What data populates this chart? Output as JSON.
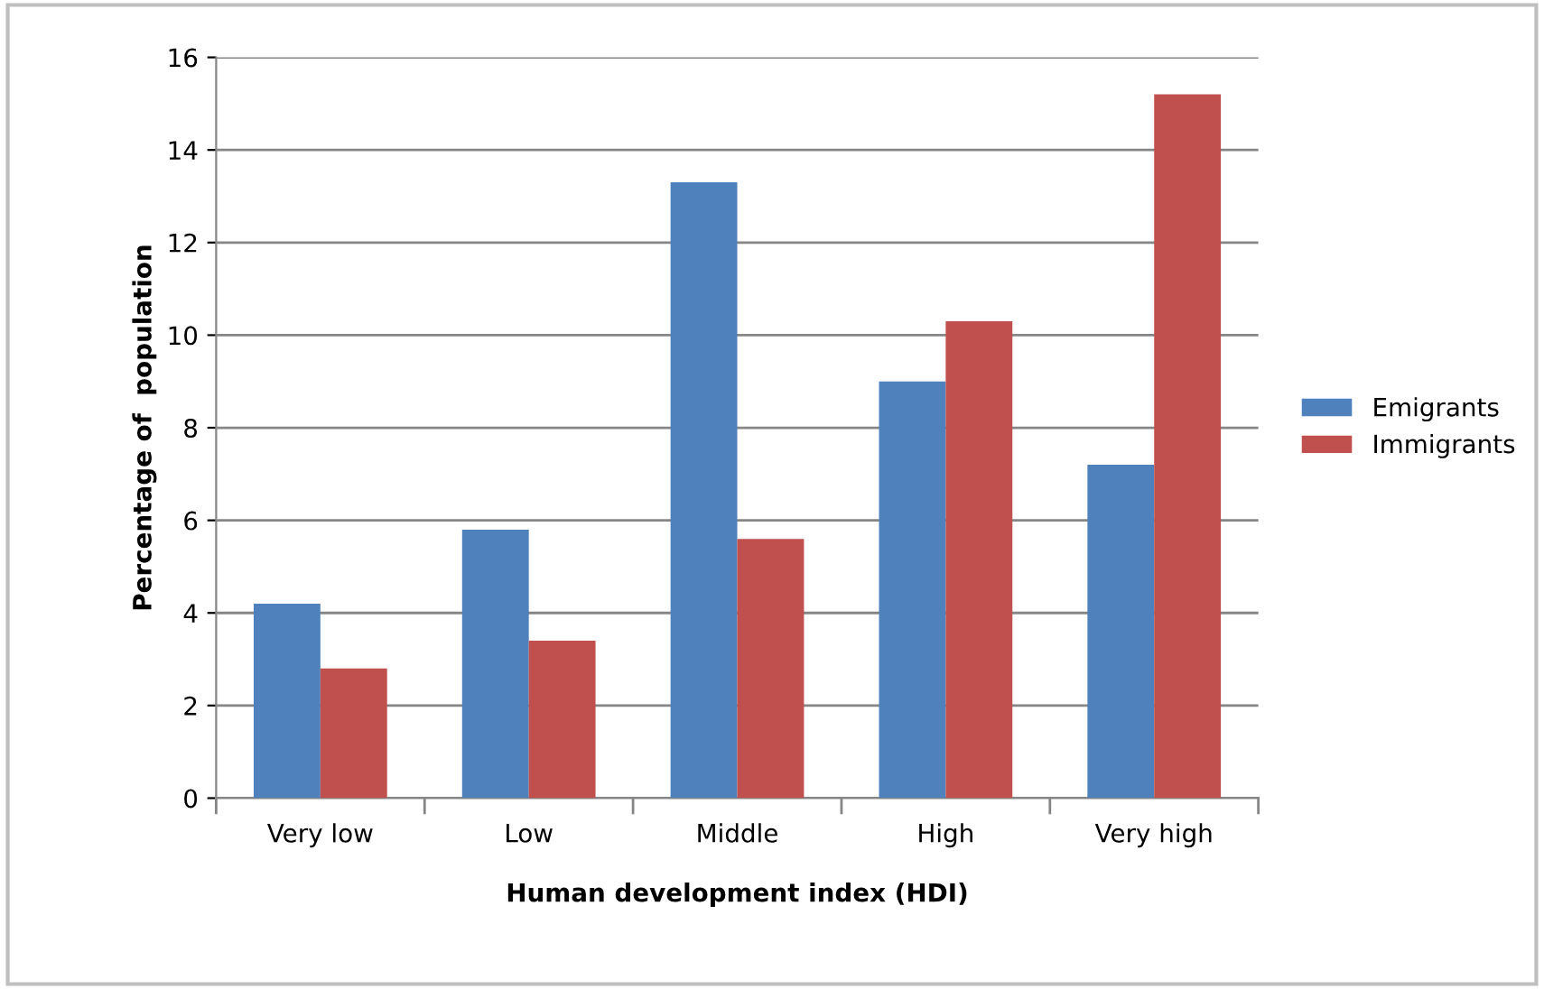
{
  "chart_data": {
    "type": "bar",
    "xlabel": "Human development index (HDI)",
    "ylabel": "Percentage of  population",
    "categories": [
      "Very low",
      "Low",
      "Middle",
      "High",
      "Very high"
    ],
    "series": [
      {
        "name": "Emigrants",
        "color": "#4f81bd",
        "values": [
          4.2,
          5.8,
          13.3,
          9.0,
          7.2
        ]
      },
      {
        "name": "Immigrants",
        "color": "#c0504d",
        "values": [
          2.8,
          3.4,
          5.6,
          10.3,
          15.2
        ]
      }
    ],
    "ylim": [
      0,
      16
    ],
    "yticks": [
      0,
      2,
      4,
      6,
      8,
      10,
      12,
      14,
      16
    ],
    "grid": "y",
    "legend": "right"
  }
}
